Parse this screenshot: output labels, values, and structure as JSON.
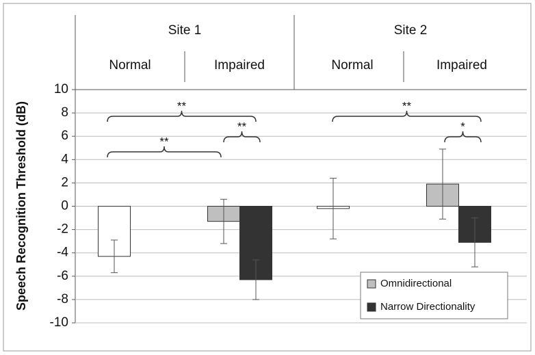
{
  "chart_data": {
    "type": "bar",
    "y_label": "Speech Recognition Threshold (dB)",
    "groups": [
      "Site 1",
      "Site 2"
    ],
    "categories": [
      "Normal",
      "Impaired",
      "Normal",
      "Impaired"
    ],
    "series": [
      {
        "color": "#ffffff",
        "values": [
          -4.3,
          null,
          -0.2,
          null
        ],
        "errors": [
          1.4,
          null,
          2.6,
          null
        ]
      },
      {
        "name": "Omnidirectional",
        "color": "#bfbfbf",
        "values": [
          null,
          -1.3,
          null,
          1.9
        ],
        "errors": [
          null,
          1.9,
          null,
          3.0
        ]
      },
      {
        "name": "Narrow Directionality",
        "color": "#333333",
        "values": [
          null,
          -6.3,
          null,
          -3.1
        ],
        "errors": [
          null,
          1.7,
          null,
          2.1
        ]
      }
    ],
    "ylim": [
      -10,
      10
    ],
    "yticks": [
      -10,
      -8,
      -6,
      -4,
      -2,
      0,
      2,
      4,
      6,
      8,
      10
    ],
    "grid": true,
    "legend": "lower right",
    "annotations": [
      {
        "text": "**"
      },
      {
        "text": "**"
      },
      {
        "text": "**"
      },
      {
        "text": "**"
      },
      {
        "text": "*"
      }
    ]
  }
}
